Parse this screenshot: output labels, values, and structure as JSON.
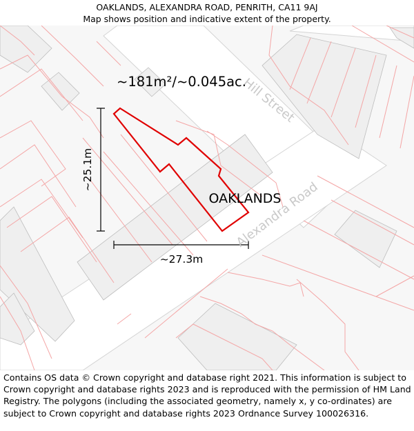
{
  "header": {
    "address": "OAKLANDS, ALEXANDRA ROAD, PENRITH, CA11 9AJ",
    "subtitle": "Map shows position and indicative extent of the property."
  },
  "map": {
    "area_label": "~181m²/~0.045ac.",
    "property_label": "OAKLANDS",
    "streets": {
      "hill_street": "Hill Street",
      "alexandra_road": "Alexandra Road"
    },
    "dimensions": {
      "height": "~25.1m",
      "width": "~27.3m"
    },
    "colors": {
      "boundary": "#e00000",
      "parcel_lines": "#f4a5a5",
      "buildings": "#efefef",
      "road_edge": "#cfcfcf"
    }
  },
  "footer": {
    "attribution": "Contains OS data © Crown copyright and database right 2021. This information is subject to Crown copyright and database rights 2023 and is reproduced with the permission of HM Land Registry. The polygons (including the associated geometry, namely x, y co-ordinates) are subject to Crown copyright and database rights 2023 Ordnance Survey 100026316."
  }
}
